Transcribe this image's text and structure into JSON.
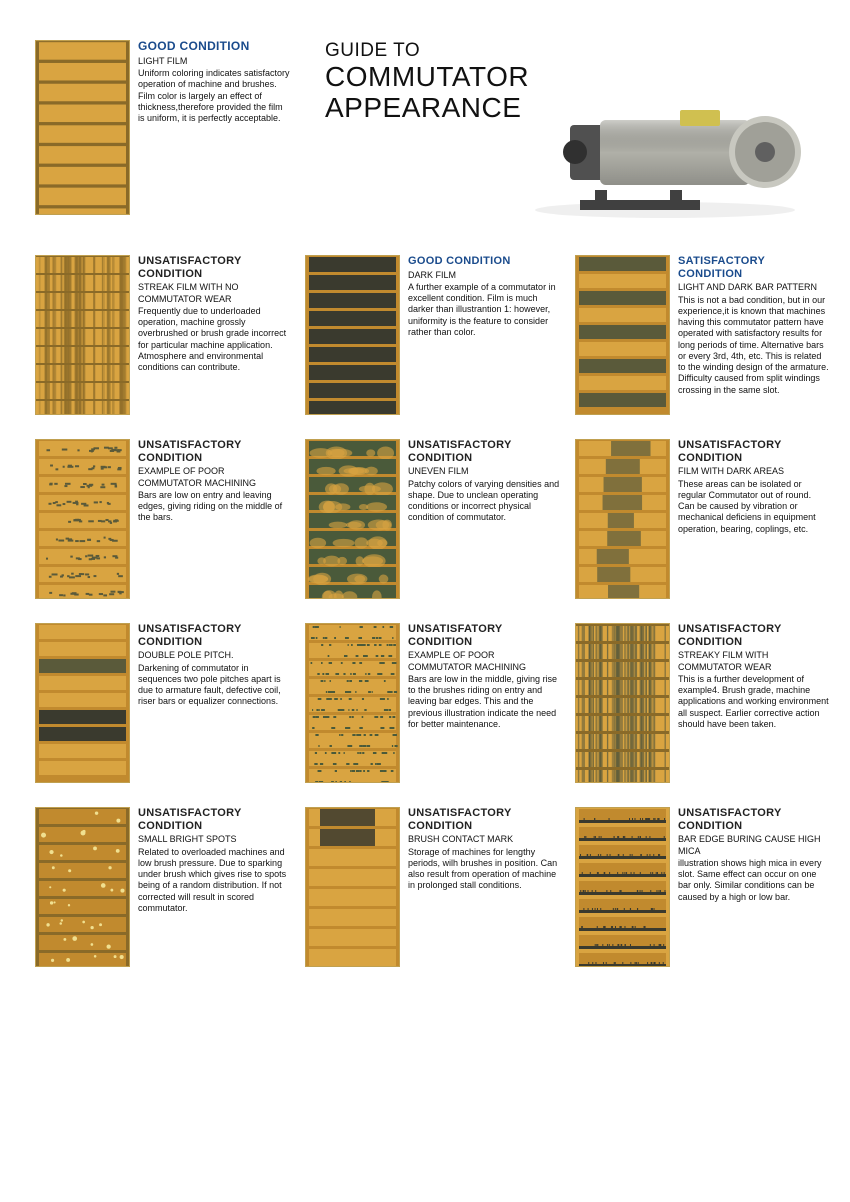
{
  "title": {
    "pre": "GUIDE TO",
    "main": "COMMUTATOR APPEARANCE"
  },
  "palette": {
    "copper_light": "#d9a441",
    "copper_mid": "#c18a2e",
    "copper_dark": "#8a6a28",
    "film_dark": "#3a3a2e",
    "film_olive": "#5a5a3a",
    "film_green": "#4a5a3a",
    "border": "#c0a050",
    "good_title": "#1a4b8c",
    "unsat_title": "#222222",
    "bg": "#ffffff",
    "text": "#111111"
  },
  "motor": {
    "body": "#b0b0a8",
    "dark": "#505050",
    "cap": "#d0c050",
    "base": "#404040"
  },
  "items": [
    {
      "id": "good-light",
      "class": "good",
      "title": "GOOD CONDITION",
      "sub": "LIGHT FILM",
      "desc": "Uniform coloring indicates satisfactory operation of machine and brushes. Film color is largely an effect of thickness,therefore provided the film is uniform, it is perfectly acceptable.",
      "pattern": "uniform-light"
    },
    {
      "id": "streak",
      "class": "unsat",
      "title": "UNSATISFACTORY CONDITION",
      "sub": "STREAK FILM WITH NO COMMUTATOR WEAR",
      "desc": "Frequently due to underloaded operation, machine grossly overbrushed or brush grade incorrect for particular machine application. Atmosphere and environmental conditions can contribute.",
      "pattern": "streak"
    },
    {
      "id": "good-dark",
      "class": "good",
      "title": "GOOD CONDITION",
      "sub": "DARK FILM",
      "desc": "A further example of a commutator in excellent condition. Film is much darker than illustrantion 1: however, uniformity is the feature to consider rather than color.",
      "pattern": "uniform-dark"
    },
    {
      "id": "sat-bars",
      "class": "sat",
      "title": "SATISFACTORY CONDITION",
      "sub": "LIGHT AND DARK BAR PATTERN",
      "desc": "This is not a bad condition, but in our experience,it is known that machines having this commutator pattern have operated with satisfactory results for long periods of time. Alternative bars or every 3rd, 4th, etc. This is related to the winding design of the armature. Difficulty caused from split windings crossing in the same slot.",
      "pattern": "alt-bars"
    },
    {
      "id": "poor-mach-1",
      "class": "unsat",
      "title": "UNSATISFACTORY CONDITION",
      "sub": "EXAMPLE OF POOR COMMUTATOR MACHINING",
      "desc": "Bars are low on entry and leaving edges, giving riding on the middle of the bars.",
      "pattern": "ridge-mid"
    },
    {
      "id": "uneven",
      "class": "unsat",
      "title": "UNSATISFACTORY CONDITION",
      "sub": "UNEVEN FILM",
      "desc": "Patchy colors of varying densities and shape. Due to unclean operating conditions or incorrect physical condition of  commutator.",
      "pattern": "uneven"
    },
    {
      "id": "dark-areas",
      "class": "unsat",
      "title": "UNSATISFACTORY CONDITION",
      "sub": "FILM WITH DARK AREAS",
      "desc": "These areas can be isolated or regular Commutator out of round. Can be caused by vibration or mechanical deficiens in equipment operation, bearing, coplings, etc.",
      "pattern": "dark-patch"
    },
    {
      "id": "double-pole",
      "class": "unsat",
      "title": "UNSATISFACTORY CONDITION",
      "sub": "DOUBLE POLE PITCH.",
      "desc": "Darkening of commutator in sequences two pole pitches apart is due to armature fault, defective coil, riser bars or equalizer connections.",
      "pattern": "double-pole"
    },
    {
      "id": "poor-mach-2",
      "class": "unsat",
      "title": "UNSATISFATORY CONDITION",
      "sub": "EXAMPLE OF POOR COMMUTATOR MACHINING",
      "desc": "Bars are low in the middle, giving rise to the brushes riding on entry and leaving bar edges. This and the previous illustration indicate the need for better maintenance.",
      "pattern": "ridge-edge"
    },
    {
      "id": "streaky-wear",
      "class": "unsat",
      "title": "UNSATISFACTORY CONDITION",
      "sub": "STREAKY FILM WITH COMMUTATOR WEAR",
      "desc": "This is a further development of example4. Brush grade, machine applications and working environment all suspect. Earlier corrective action should have been taken.",
      "pattern": "streak-wear"
    },
    {
      "id": "bright-spots",
      "class": "unsat",
      "title": "UNSATISFACTORY CONDITION",
      "sub": "SMALL BRIGHT SPOTS",
      "desc": "Related to overloaded machines and low brush pressure. Due to sparking under brush which gives rise to spots being of a random distribution. If not corrected will result in scored commutator.",
      "pattern": "spots"
    },
    {
      "id": "brush-mark",
      "class": "unsat",
      "title": "UNSATISFACTORY CONDITION",
      "sub": "BRUSH CONTACT MARK",
      "desc": "Storage of machines for lengthy periods, wilh brushes in position. Can also result from operation of machine in prolonged stall conditions.",
      "pattern": "brush-mark"
    },
    {
      "id": "bar-edge",
      "class": "unsat",
      "title": "UNSATISFACTORY CONDITION",
      "sub": "BAR EDGE BURING CAUSE HIGH MICA",
      "desc": "illustration shows high mica in every slot. Same effect can occur on one bar only. Similar conditions can be caused by a high or low bar.",
      "pattern": "bar-edge"
    }
  ]
}
